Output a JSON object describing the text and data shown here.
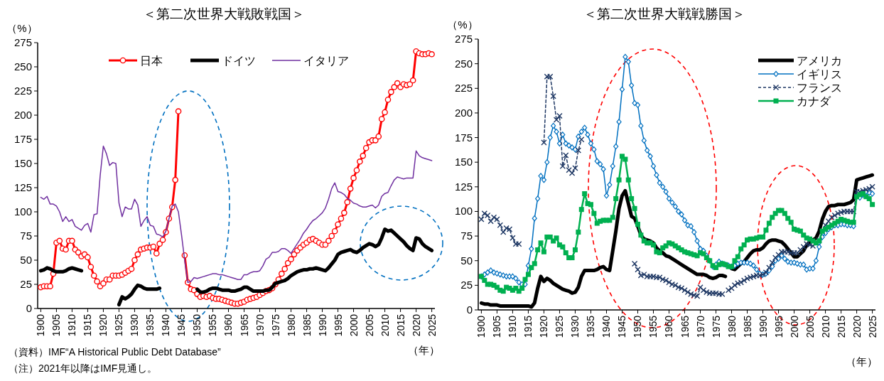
{
  "chart_data": [
    {
      "type": "line",
      "title": "＜第二次世界大戦敗戦国＞",
      "ylabel": "（%）",
      "xlabel": "（年）",
      "legend": "top",
      "xlim": [
        1899,
        2026
      ],
      "ylim": [
        0,
        275
      ],
      "yticks": [
        0,
        25,
        50,
        75,
        100,
        125,
        150,
        175,
        200,
        225,
        250,
        275
      ],
      "xticks": [
        1900,
        1905,
        1910,
        1915,
        1920,
        1925,
        1930,
        1935,
        1940,
        1945,
        1950,
        1955,
        1960,
        1965,
        1970,
        1975,
        1980,
        1985,
        1990,
        1995,
        2000,
        2005,
        2010,
        2015,
        2020,
        2025
      ],
      "annotations": [
        "（資料）IMF“A Historical Public Debt Database”",
        "（注）2021年以降はIMF見通し。"
      ],
      "x": [
        1900,
        1901,
        1902,
        1903,
        1904,
        1905,
        1906,
        1907,
        1908,
        1909,
        1910,
        1911,
        1912,
        1913,
        1914,
        1915,
        1916,
        1917,
        1918,
        1919,
        1920,
        1921,
        1922,
        1923,
        1924,
        1925,
        1926,
        1927,
        1928,
        1929,
        1930,
        1931,
        1932,
        1933,
        1934,
        1935,
        1936,
        1937,
        1938,
        1939,
        1940,
        1941,
        1942,
        1943,
        1944,
        1945,
        1946,
        1947,
        1948,
        1949,
        1950,
        1951,
        1952,
        1953,
        1954,
        1955,
        1956,
        1957,
        1958,
        1959,
        1960,
        1961,
        1962,
        1963,
        1964,
        1965,
        1966,
        1967,
        1968,
        1969,
        1970,
        1971,
        1972,
        1973,
        1974,
        1975,
        1976,
        1977,
        1978,
        1979,
        1980,
        1981,
        1982,
        1983,
        1984,
        1985,
        1986,
        1987,
        1988,
        1989,
        1990,
        1991,
        1992,
        1993,
        1994,
        1995,
        1996,
        1997,
        1998,
        1999,
        2000,
        2001,
        2002,
        2003,
        2004,
        2005,
        2006,
        2007,
        2008,
        2009,
        2010,
        2011,
        2012,
        2013,
        2014,
        2015,
        2016,
        2017,
        2018,
        2019,
        2020,
        2021,
        2022,
        2023,
        2024,
        2025
      ],
      "series": [
        {
          "name": "日本",
          "color": "#ff0000",
          "marker": "circle",
          "line_style": "solid",
          "values": [
            22,
            23,
            23,
            23,
            36,
            68,
            70,
            62,
            61,
            70,
            70,
            61,
            58,
            54,
            56,
            53,
            43,
            34,
            28,
            23,
            26,
            30,
            30,
            34,
            34,
            34,
            35,
            37,
            39,
            41,
            50,
            56,
            61,
            62,
            63,
            63,
            64,
            57,
            67,
            71,
            79,
            93,
            105,
            133,
            204,
            null,
            55,
            27,
            20,
            19,
            15,
            12,
            13,
            12,
            13,
            11,
            10,
            10,
            9,
            8,
            7,
            6,
            5,
            5,
            6,
            7,
            9,
            10,
            11,
            12,
            14,
            16,
            18,
            19,
            21,
            25,
            30,
            36,
            41,
            47,
            51,
            56,
            60,
            63,
            66,
            68,
            71,
            72,
            70,
            68,
            66,
            66,
            70,
            75,
            80,
            87,
            93,
            99,
            110,
            124,
            135,
            143,
            152,
            158,
            166,
            172,
            174,
            174,
            178,
            196,
            203,
            216,
            224,
            229,
            233,
            229,
            232,
            231,
            232,
            236,
            266,
            264,
            263,
            263,
            264,
            263
          ]
        },
        {
          "name": "ドイツ",
          "color": "#000000",
          "marker": "none",
          "line_style": "solid",
          "values": [
            39,
            40,
            42,
            41,
            39,
            38,
            38,
            38,
            39,
            41,
            42,
            41,
            40,
            39,
            null,
            null,
            null,
            null,
            null,
            null,
            null,
            null,
            null,
            null,
            null,
            4,
            12,
            10,
            12,
            15,
            20,
            24,
            23,
            21,
            20,
            20,
            20,
            20,
            21,
            null,
            null,
            null,
            null,
            null,
            null,
            null,
            null,
            null,
            null,
            null,
            20,
            17,
            17,
            18,
            20,
            21,
            21,
            20,
            19,
            19,
            19,
            18,
            18,
            19,
            20,
            22,
            22,
            20,
            18,
            18,
            18,
            18,
            19,
            19,
            22,
            26,
            27,
            28,
            29,
            31,
            34,
            36,
            38,
            39,
            40,
            40,
            41,
            41,
            42,
            41,
            40,
            39,
            42,
            46,
            50,
            56,
            58,
            59,
            60,
            61,
            59,
            58,
            60,
            63,
            65,
            67,
            66,
            64,
            66,
            73,
            82,
            80,
            81,
            78,
            75,
            72,
            69,
            65,
            62,
            60,
            73,
            72,
            67,
            64,
            62,
            60
          ]
        },
        {
          "name": "イタリア",
          "color": "#7030a0",
          "marker": "none",
          "line_style": "solid",
          "values": [
            115,
            113,
            116,
            108,
            108,
            106,
            100,
            90,
            95,
            90,
            92,
            85,
            83,
            81,
            86,
            88,
            79,
            97,
            98,
            138,
            168,
            160,
            148,
            151,
            150,
            109,
            95,
            105,
            103,
            103,
            113,
            107,
            85,
            91,
            95,
            86,
            85,
            77,
            76,
            74,
            80,
            93,
            106,
            108,
            100,
            76,
            50,
            27,
            28,
            32,
            31,
            32,
            33,
            34,
            35,
            36,
            36,
            35,
            35,
            34,
            33,
            32,
            31,
            30,
            30,
            35,
            35,
            37,
            38,
            38,
            39,
            44,
            51,
            53,
            58,
            58,
            59,
            62,
            62,
            60,
            57,
            62,
            67,
            72,
            78,
            82,
            87,
            91,
            93,
            96,
            99,
            104,
            113,
            124,
            130,
            121,
            120,
            118,
            114,
            112,
            109,
            108,
            106,
            105,
            105,
            106,
            107,
            104,
            107,
            116,
            119,
            120,
            127,
            133,
            136,
            135,
            134,
            135,
            135,
            135,
            163,
            158,
            156,
            155,
            154,
            153
          ]
        }
      ]
    },
    {
      "type": "line",
      "title": "＜第二次世界大戦戦勝国＞",
      "ylabel": "（%）",
      "xlabel": "（年）",
      "legend": "top right",
      "xlim": [
        1899,
        2026
      ],
      "ylim": [
        0,
        275
      ],
      "yticks": [
        0,
        25,
        50,
        75,
        100,
        125,
        150,
        175,
        200,
        225,
        250,
        275
      ],
      "xticks": [
        1900,
        1905,
        1910,
        1915,
        1920,
        1925,
        1930,
        1935,
        1940,
        1945,
        1950,
        1955,
        1960,
        1965,
        1970,
        1975,
        1980,
        1985,
        1990,
        1995,
        2000,
        2005,
        2010,
        2015,
        2020,
        2025
      ],
      "x": [
        1900,
        1901,
        1902,
        1903,
        1904,
        1905,
        1906,
        1907,
        1908,
        1909,
        1910,
        1911,
        1912,
        1913,
        1914,
        1915,
        1916,
        1917,
        1918,
        1919,
        1920,
        1921,
        1922,
        1923,
        1924,
        1925,
        1926,
        1927,
        1928,
        1929,
        1930,
        1931,
        1932,
        1933,
        1934,
        1935,
        1936,
        1937,
        1938,
        1939,
        1940,
        1941,
        1942,
        1943,
        1944,
        1945,
        1946,
        1947,
        1948,
        1949,
        1950,
        1951,
        1952,
        1953,
        1954,
        1955,
        1956,
        1957,
        1958,
        1959,
        1960,
        1961,
        1962,
        1963,
        1964,
        1965,
        1966,
        1967,
        1968,
        1969,
        1970,
        1971,
        1972,
        1973,
        1974,
        1975,
        1976,
        1977,
        1978,
        1979,
        1980,
        1981,
        1982,
        1983,
        1984,
        1985,
        1986,
        1987,
        1988,
        1989,
        1990,
        1991,
        1992,
        1993,
        1994,
        1995,
        1996,
        1997,
        1998,
        1999,
        2000,
        2001,
        2002,
        2003,
        2004,
        2005,
        2006,
        2007,
        2008,
        2009,
        2010,
        2011,
        2012,
        2013,
        2014,
        2015,
        2016,
        2017,
        2018,
        2019,
        2020,
        2021,
        2022,
        2023,
        2024,
        2025
      ],
      "series": [
        {
          "name": "アメリカ",
          "color": "#000000",
          "marker": "none",
          "line_style": "solid",
          "values": [
            7,
            6,
            6,
            5,
            5,
            5,
            4,
            4,
            4,
            4,
            4,
            4,
            4,
            4,
            4,
            4,
            3,
            7,
            22,
            34,
            29,
            32,
            30,
            27,
            25,
            23,
            21,
            20,
            19,
            17,
            18,
            23,
            34,
            40,
            40,
            40,
            40,
            41,
            43,
            44,
            41,
            40,
            60,
            80,
            103,
            116,
            121,
            108,
            95,
            93,
            85,
            76,
            72,
            71,
            70,
            68,
            63,
            60,
            58,
            55,
            54,
            52,
            50,
            48,
            46,
            44,
            42,
            40,
            38,
            36,
            36,
            36,
            35,
            33,
            32,
            33,
            35,
            35,
            34,
            null,
            42,
            41,
            44,
            47,
            49,
            53,
            57,
            60,
            61,
            61,
            63,
            67,
            70,
            71,
            71,
            70,
            69,
            66,
            62,
            58,
            54,
            54,
            57,
            60,
            66,
            69,
            71,
            73,
            80,
            92,
            100,
            105,
            106,
            106,
            107,
            107,
            107,
            108,
            109,
            112,
            132,
            133,
            134,
            135,
            136,
            137
          ]
        },
        {
          "name": "イギリス",
          "color": "#0070c0",
          "marker": "diamond",
          "line_style": "solid",
          "values": [
            34,
            36,
            38,
            40,
            38,
            37,
            36,
            35,
            34,
            34,
            34,
            32,
            28,
            26,
            26,
            45,
            62,
            93,
            113,
            136,
            132,
            150,
            175,
            187,
            181,
            169,
            178,
            169,
            167,
            165,
            163,
            176,
            181,
            185,
            178,
            169,
            163,
            151,
            148,
            143,
            116,
            127,
            146,
            166,
            191,
            224,
            257,
            252,
            228,
            210,
            208,
            187,
            172,
            162,
            156,
            146,
            137,
            129,
            125,
            120,
            113,
            109,
            105,
            100,
            97,
            91,
            86,
            85,
            79,
            70,
            62,
            60,
            55,
            50,
            44,
            46,
            49,
            47,
            46,
            45,
            44,
            45,
            47,
            48,
            48,
            48,
            47,
            45,
            41,
            37,
            36,
            37,
            40,
            44,
            50,
            52,
            55,
            52,
            49,
            48,
            48,
            47,
            46,
            46,
            41,
            42,
            42,
            50,
            64,
            74,
            78,
            82,
            84,
            86,
            86,
            87,
            87,
            86,
            86,
            85,
            115,
            114,
            117,
            120,
            119,
            118
          ]
        },
        {
          "name": "フランス",
          "color": "#1f3864",
          "marker": "cross",
          "line_style": "dashed",
          "values": [
            92,
            98,
            96,
            90,
            94,
            92,
            86,
            79,
            83,
            82,
            73,
            67,
            67,
            null,
            null,
            null,
            null,
            null,
            null,
            null,
            170,
            237,
            237,
            217,
            193,
            197,
            146,
            157,
            142,
            139,
            144,
            162,
            173,
            null,
            null,
            null,
            null,
            null,
            null,
            null,
            null,
            null,
            null,
            null,
            null,
            null,
            null,
            null,
            null,
            47,
            41,
            35,
            36,
            34,
            34,
            34,
            33,
            33,
            31,
            30,
            28,
            26,
            25,
            23,
            22,
            20,
            18,
            16,
            15,
            14,
            23,
            20,
            18,
            17,
            17,
            17,
            16,
            16,
            null,
            20,
            22,
            25,
            27,
            28,
            30,
            32,
            33,
            34,
            35,
            35,
            36,
            38,
            43,
            48,
            53,
            56,
            59,
            59,
            59,
            58,
            58,
            58,
            61,
            64,
            67,
            66,
            65,
            68,
            71,
            80,
            86,
            90,
            94,
            96,
            98,
            99,
            100,
            100,
            100,
            100,
            120,
            120,
            121,
            122,
            123,
            125
          ]
        },
        {
          "name": "カナダ",
          "color": "#00b050",
          "marker": "square",
          "line_style": "solid",
          "values": [
            34,
            30,
            26,
            26,
            25,
            23,
            20,
            19,
            23,
            22,
            20,
            22,
            19,
            22,
            31,
            36,
            43,
            47,
            61,
            68,
            59,
            74,
            74,
            70,
            73,
            66,
            64,
            58,
            53,
            53,
            61,
            79,
            102,
            118,
            108,
            107,
            98,
            88,
            90,
            91,
            91,
            91,
            94,
            113,
            132,
            156,
            153,
            132,
            113,
            103,
            87,
            76,
            70,
            68,
            68,
            66,
            59,
            58,
            63,
            65,
            68,
            67,
            65,
            63,
            61,
            59,
            58,
            57,
            56,
            55,
            58,
            57,
            53,
            50,
            45,
            43,
            46,
            47,
            46,
            44,
            44,
            50,
            54,
            62,
            66,
            71,
            72,
            72,
            73,
            74,
            74,
            81,
            88,
            94,
            98,
            101,
            101,
            98,
            93,
            89,
            82,
            81,
            80,
            76,
            73,
            72,
            70,
            68,
            70,
            80,
            82,
            84,
            86,
            88,
            90,
            92,
            91,
            90,
            89,
            89,
            115,
            117,
            118,
            115,
            113,
            107
          ]
        }
      ]
    }
  ]
}
